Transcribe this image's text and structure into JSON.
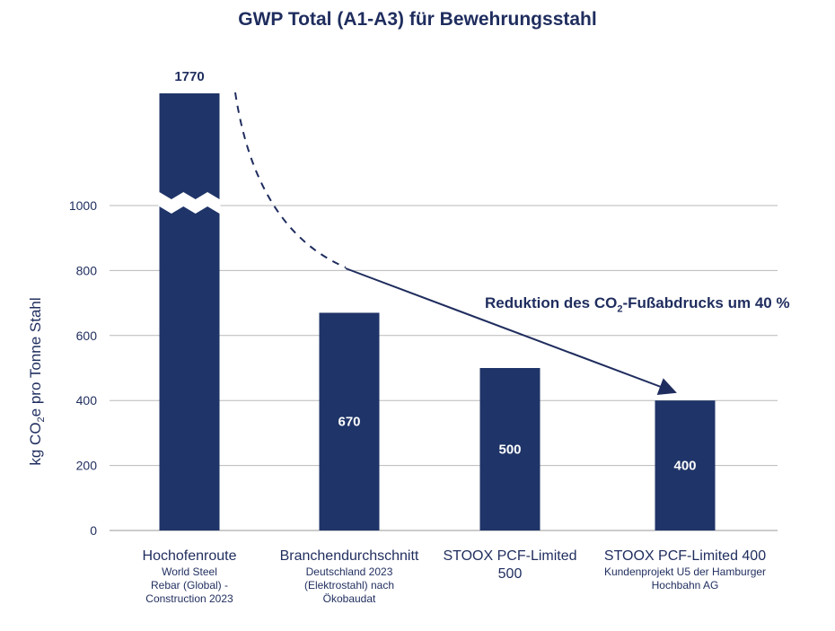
{
  "chart_data": {
    "type": "bar",
    "title": "GWP Total (A1-A3) für Bewehrungsstahl",
    "ylabel": {
      "pre": "kg CO",
      "sub": "2",
      "post": "e pro Tonne Stahl"
    },
    "ylim": [
      0,
      1200
    ],
    "axis_break": true,
    "yticks": [
      0,
      200,
      400,
      600,
      800,
      1000
    ],
    "categories": [
      {
        "label": "Hochofenroute",
        "sublabel": [
          "World Steel",
          "Rebar (Global) -",
          "Construction 2023"
        ]
      },
      {
        "label": "Branchendurchschnitt",
        "sublabel": [
          "Deutschland 2023",
          "(Elektrostahl) nach",
          "Ökobaudat"
        ]
      },
      {
        "label": "STOOX PCF-Limited",
        "label2": "500",
        "sublabel": []
      },
      {
        "label": "STOOX PCF-Limited 400",
        "sublabel": [
          "Kundenprojekt U5 der Hamburger",
          "Hochbahn AG"
        ]
      }
    ],
    "values": [
      1770,
      670,
      500,
      400
    ],
    "data_labels": [
      "1770",
      "670",
      "500",
      "400"
    ],
    "annotation": {
      "pre": "Reduktion des CO",
      "sub": "2",
      "post": "-Fußabdrucks um 40 %"
    },
    "grid": true,
    "colors": {
      "bar": "#1f3468",
      "grid": "#b9b9b9",
      "text": "#1f2d5e"
    }
  }
}
